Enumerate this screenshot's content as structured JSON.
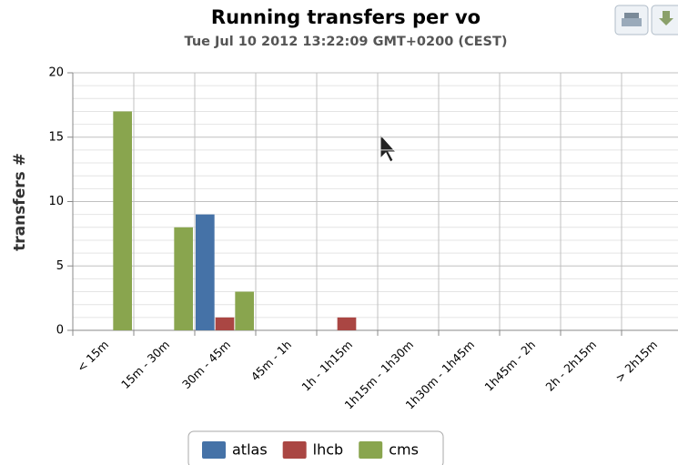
{
  "chart_data": {
    "type": "bar",
    "title": "Running transfers per vo",
    "subtitle": "Tue Jul 10 2012 13:22:09 GMT+0200 (CEST)",
    "y_label": "transfers #",
    "categories": [
      "< 15m",
      "15m - 30m",
      "30m - 45m",
      "45m - 1h",
      "1h - 1h15m",
      "1h15m - 1h30m",
      "1h30m - 1h45m",
      "1h45m - 2h",
      "2h - 2h15m",
      "> 2h15m"
    ],
    "series": [
      {
        "name": "atlas",
        "color": "#4572a7",
        "values": [
          0,
          0,
          9,
          0,
          0,
          0,
          0,
          0,
          0,
          0
        ]
      },
      {
        "name": "lhcb",
        "color": "#aa4643",
        "values": [
          0,
          0,
          1,
          0,
          1,
          0,
          0,
          0,
          0,
          0
        ]
      },
      {
        "name": "cms",
        "color": "#89a54e",
        "values": [
          17,
          8,
          3,
          0,
          0,
          0,
          0,
          0,
          0,
          0
        ]
      }
    ],
    "ylim": [
      0,
      20
    ],
    "yticks": [
      0,
      5,
      10,
      15,
      20
    ],
    "yminorticks": [
      1,
      2,
      3,
      4,
      6,
      7,
      8,
      9,
      11,
      12,
      13,
      14,
      16,
      17,
      18,
      19
    ],
    "grid": true,
    "legend": "bottom"
  }
}
